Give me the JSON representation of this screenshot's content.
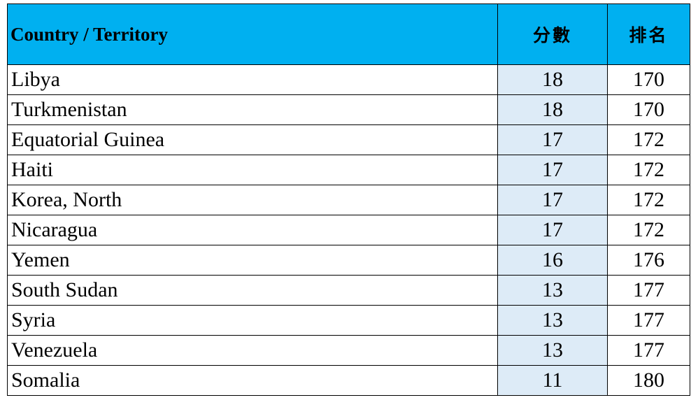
{
  "table": {
    "headers": {
      "country": "Country / Territory",
      "score": "分數",
      "rank": "排名"
    },
    "rows": [
      {
        "country": "Libya",
        "score": "18",
        "rank": "170"
      },
      {
        "country": "Turkmenistan",
        "score": "18",
        "rank": "170"
      },
      {
        "country": "Equatorial Guinea",
        "score": "17",
        "rank": "172"
      },
      {
        "country": "Haiti",
        "score": "17",
        "rank": "172"
      },
      {
        "country": "Korea, North",
        "score": "17",
        "rank": "172"
      },
      {
        "country": "Nicaragua",
        "score": "17",
        "rank": "172"
      },
      {
        "country": "Yemen",
        "score": "16",
        "rank": "176"
      },
      {
        "country": "South Sudan",
        "score": "13",
        "rank": "177"
      },
      {
        "country": "Syria",
        "score": "13",
        "rank": "177"
      },
      {
        "country": "Venezuela",
        "score": "13",
        "rank": "177"
      },
      {
        "country": "Somalia",
        "score": "11",
        "rank": "180"
      }
    ]
  },
  "colors": {
    "header_background": "#00b0f0",
    "score_column_background": "#ddebf7",
    "border": "#000000"
  }
}
